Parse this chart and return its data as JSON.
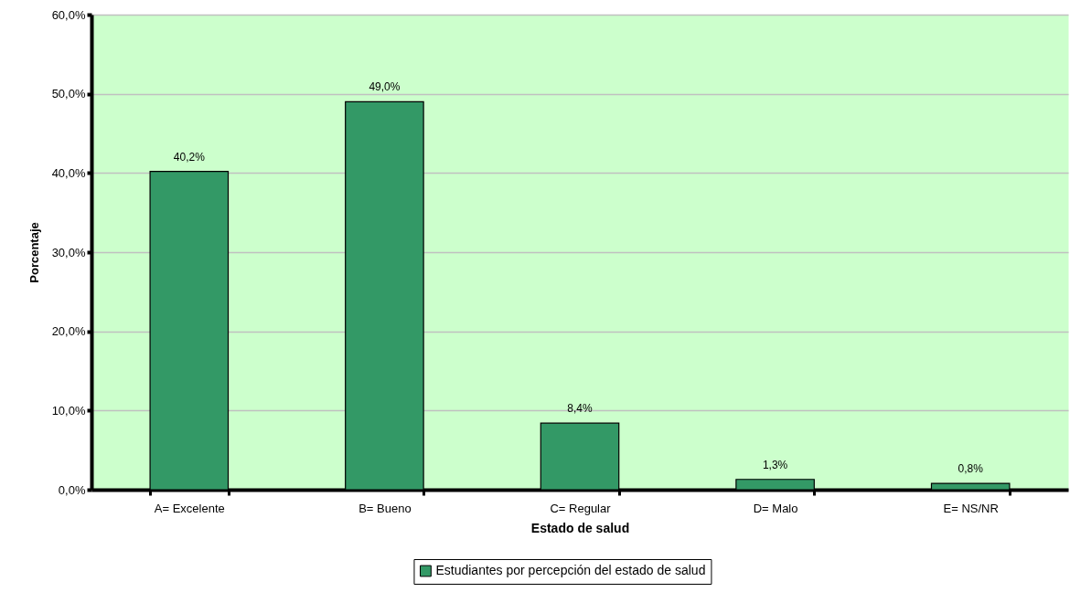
{
  "chart_data": {
    "type": "bar",
    "xlabel": "Estado de salud",
    "ylabel": "Porcentaje",
    "categories": [
      "A= Excelente",
      "B= Bueno",
      "C= Regular",
      "D= Malo",
      "E= NS/NR"
    ],
    "series": [
      {
        "name": "Estudiantes por percepción del estado de salud",
        "color": "#339966",
        "values": [
          40.2,
          49.0,
          8.4,
          1.3,
          0.8
        ],
        "value_labels": [
          "40,2%",
          "49,0%",
          "8,4%",
          "1,3%",
          "0,8%"
        ]
      }
    ],
    "ylim": [
      0,
      60
    ],
    "yticks": [
      {
        "value": 0,
        "label": "0,0%"
      },
      {
        "value": 10,
        "label": "10,0%"
      },
      {
        "value": 20,
        "label": "20,0%"
      },
      {
        "value": 30,
        "label": "30,0%"
      },
      {
        "value": 40,
        "label": "40,0%"
      },
      {
        "value": 50,
        "label": "50,0%"
      },
      {
        "value": 60,
        "label": "60,0%"
      }
    ],
    "grid": "y",
    "legend": "bottom"
  }
}
